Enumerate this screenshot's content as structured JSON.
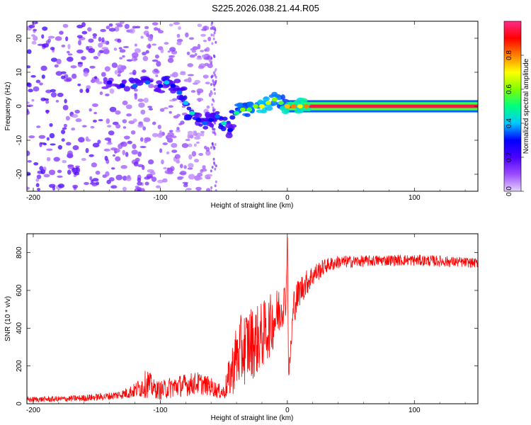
{
  "title": "S225.2026.038.21.44.R05",
  "chart_data": [
    {
      "type": "heatmap",
      "name": "spectrogram",
      "xlabel": "Height of straight line (km)",
      "ylabel": "Frequency (Hz)",
      "xlim": [
        -205,
        150
      ],
      "ylim": [
        -25,
        25
      ],
      "xticks": [
        -200,
        -100,
        0,
        100
      ],
      "yticks": [
        -20,
        -10,
        0,
        10,
        20
      ],
      "colorbar": {
        "label": "Normalized spectral amplitude",
        "range": [
          0,
          1
        ],
        "ticks": [
          "0.0",
          "0.2",
          "0.4",
          "0.6",
          "0.8"
        ],
        "tick_values": [
          0.0,
          0.2,
          0.4,
          0.6,
          0.8
        ],
        "colors": [
          "#e6d2ff",
          "#9a4bff",
          "#4b00ff",
          "#0000ff",
          "#00c8ff",
          "#00ff80",
          "#80ff00",
          "#ffff00",
          "#ff8000",
          "#ff0000",
          "#ff2a8a"
        ]
      },
      "ridge": [
        {
          "x": -140,
          "y": 7,
          "a": 0.25
        },
        {
          "x": -130,
          "y": 6,
          "a": 0.3
        },
        {
          "x": -120,
          "y": 6,
          "a": 0.35
        },
        {
          "x": -110,
          "y": 7,
          "a": 0.35
        },
        {
          "x": -100,
          "y": 6,
          "a": 0.3
        },
        {
          "x": -95,
          "y": 7,
          "a": 0.4
        },
        {
          "x": -90,
          "y": 6,
          "a": 0.3
        },
        {
          "x": -85,
          "y": 4,
          "a": 0.35
        },
        {
          "x": -80,
          "y": 1,
          "a": 0.4
        },
        {
          "x": -75,
          "y": -2,
          "a": 0.45
        },
        {
          "x": -70,
          "y": -4,
          "a": 0.3
        },
        {
          "x": -65,
          "y": -5,
          "a": 0.35
        },
        {
          "x": -60,
          "y": -4,
          "a": 0.3
        },
        {
          "x": -55,
          "y": -3,
          "a": 0.35
        },
        {
          "x": -50,
          "y": -5,
          "a": 0.45
        },
        {
          "x": -45,
          "y": -7,
          "a": 0.3
        },
        {
          "x": -40,
          "y": -2,
          "a": 0.5
        },
        {
          "x": -35,
          "y": -1,
          "a": 0.6
        },
        {
          "x": -30,
          "y": -1,
          "a": 0.55
        },
        {
          "x": -25,
          "y": 0,
          "a": 0.6
        },
        {
          "x": -20,
          "y": 0,
          "a": 0.7
        },
        {
          "x": -15,
          "y": 1,
          "a": 0.65
        },
        {
          "x": -10,
          "y": 2,
          "a": 0.6
        },
        {
          "x": -5,
          "y": 1,
          "a": 0.55
        },
        {
          "x": 0,
          "y": 0,
          "a": 0.75
        },
        {
          "x": 5,
          "y": 0,
          "a": 0.8
        },
        {
          "x": 10,
          "y": 0,
          "a": 0.7
        },
        {
          "x": 15,
          "y": 0,
          "a": 0.8
        }
      ],
      "band": {
        "x_start": 0,
        "x_end": 150,
        "y": 0,
        "half_width_hz": 1.0,
        "amplitude": 0.95
      }
    },
    {
      "type": "line",
      "name": "snr",
      "xlabel": "Height of straight line (km)",
      "ylabel": "SNR (10 * v/v)",
      "xlim": [
        -205,
        150
      ],
      "ylim": [
        0,
        900
      ],
      "xticks": [
        -200,
        -100,
        0,
        100
      ],
      "yticks": [
        0,
        200,
        400,
        600,
        800
      ],
      "series": [
        {
          "name": "SNR",
          "color": "#ff0000",
          "x": [
            -205,
            -180,
            -160,
            -140,
            -130,
            -120,
            -115,
            -110,
            -105,
            -100,
            -90,
            -80,
            -70,
            -60,
            -55,
            -50,
            -45,
            -40,
            -35,
            -30,
            -25,
            -20,
            -15,
            -10,
            -5,
            -1,
            0,
            1,
            5,
            10,
            20,
            30,
            40,
            60,
            80,
            100,
            120,
            150
          ],
          "y": [
            22,
            25,
            30,
            40,
            50,
            70,
            90,
            110,
            80,
            70,
            90,
            100,
            110,
            90,
            70,
            60,
            150,
            250,
            290,
            320,
            330,
            360,
            400,
            450,
            510,
            560,
            880,
            130,
            520,
            600,
            680,
            730,
            750,
            755,
            760,
            760,
            755,
            745
          ],
          "amp": [
            15,
            15,
            18,
            20,
            25,
            40,
            60,
            80,
            50,
            50,
            60,
            60,
            60,
            50,
            40,
            40,
            120,
            180,
            200,
            200,
            190,
            180,
            170,
            150,
            130,
            90,
            0,
            40,
            100,
            80,
            60,
            40,
            35,
            30,
            30,
            30,
            30,
            25
          ]
        }
      ]
    }
  ]
}
